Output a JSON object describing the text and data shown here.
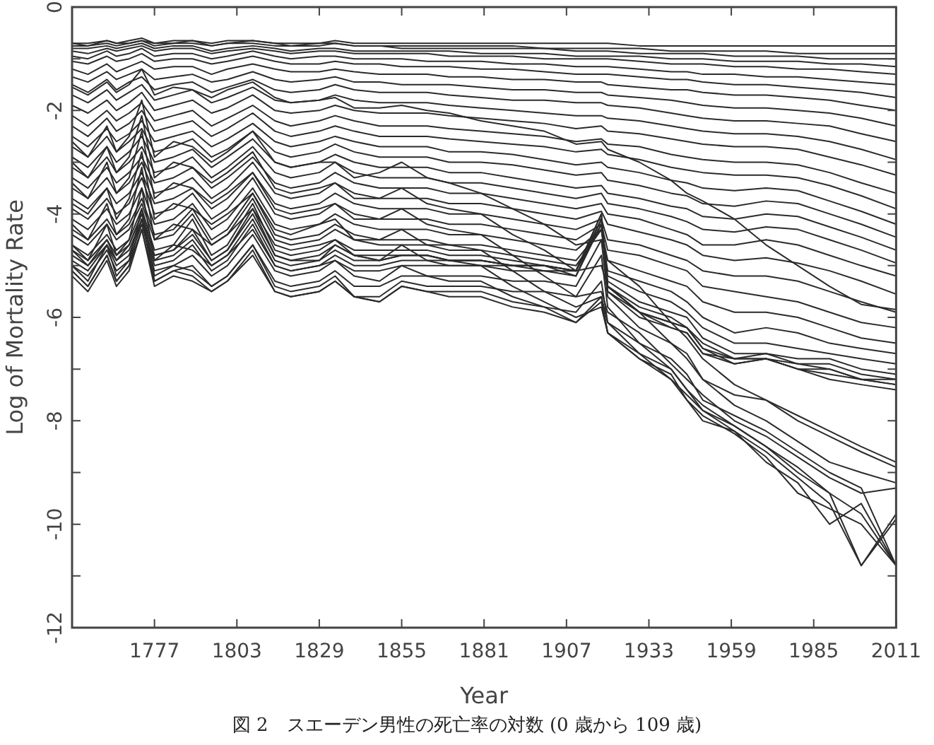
{
  "chart_data": {
    "type": "line",
    "xlabel": "Year",
    "ylabel": "Log of Mortality Rate",
    "annotations": [
      "図 2　スエーデン男性の死亡率の対数 (0 歳から 109 歳)"
    ],
    "xlim": [
      1751,
      2011
    ],
    "xticks": [
      1777,
      1803,
      1829,
      1855,
      1881,
      1907,
      1933,
      1959,
      1985,
      2011
    ],
    "ylim": [
      -12,
      0
    ],
    "yticks": [
      -12,
      {
        "value": -11,
        "label": null
      },
      -10,
      {
        "value": -9,
        "label": null
      },
      -8,
      {
        "value": -7,
        "label": null
      },
      -6,
      {
        "value": -5,
        "label": null
      },
      -4,
      {
        "value": -3,
        "label": null
      },
      -2,
      {
        "value": -1,
        "label": null
      },
      0
    ],
    "grid": false,
    "legend": false,
    "line_style": "solid",
    "x": [
      1751,
      1756,
      1762,
      1765,
      1769,
      1773,
      1777,
      1783,
      1789,
      1795,
      1800,
      1808,
      1815,
      1820,
      1829,
      1834,
      1840,
      1848,
      1855,
      1863,
      1870,
      1880,
      1890,
      1900,
      1910,
      1918,
      1920,
      1930,
      1940,
      1945,
      1950,
      1960,
      1970,
      1980,
      1990,
      2000,
      2011
    ],
    "series": [
      {
        "color": "#2b2b2b",
        "values": [
          -1.55,
          -1.7,
          -1.45,
          -1.65,
          -1.5,
          -1.2,
          -1.7,
          -1.55,
          -1.6,
          -1.75,
          -1.6,
          -1.45,
          -1.75,
          -1.85,
          -1.8,
          -1.75,
          -1.95,
          -1.95,
          -1.9,
          -2.0,
          -2.05,
          -2.2,
          -2.3,
          -2.4,
          -2.65,
          -2.6,
          -2.75,
          -3.0,
          -3.35,
          -3.6,
          -3.75,
          -4.1,
          -4.6,
          -5.0,
          -5.4,
          -5.75,
          -5.85
        ]
      },
      {
        "color": "#2b2b2b",
        "values": [
          -2.6,
          -2.9,
          -2.3,
          -2.8,
          -2.5,
          -1.8,
          -2.9,
          -2.6,
          -2.7,
          -3.0,
          -2.8,
          -2.4,
          -3.0,
          -3.1,
          -3.0,
          -3.0,
          -3.3,
          -3.2,
          -3.0,
          -3.3,
          -3.4,
          -3.6,
          -3.9,
          -4.2,
          -4.6,
          -4.5,
          -4.9,
          -5.4,
          -6.1,
          -6.4,
          -6.8,
          -7.3,
          -7.6,
          -8.0,
          -8.3,
          -8.6,
          -8.9
        ]
      },
      {
        "color": "#2b2b2b",
        "values": [
          -3.0,
          -3.3,
          -2.7,
          -3.2,
          -2.9,
          -2.1,
          -3.3,
          -3.0,
          -3.1,
          -3.4,
          -3.2,
          -2.8,
          -3.5,
          -3.6,
          -3.5,
          -3.4,
          -3.7,
          -3.7,
          -3.5,
          -3.8,
          -3.9,
          -4.0,
          -4.4,
          -4.7,
          -5.1,
          -5.0,
          -5.4,
          -5.9,
          -6.5,
          -6.8,
          -7.2,
          -7.7,
          -8.0,
          -8.4,
          -8.8,
          -9.0,
          -9.2
        ]
      },
      {
        "color": "#2b2b2b",
        "values": [
          -3.4,
          -3.7,
          -3.0,
          -3.6,
          -3.3,
          -2.4,
          -3.7,
          -3.4,
          -3.5,
          -3.8,
          -3.6,
          -3.2,
          -3.9,
          -4.0,
          -3.9,
          -3.8,
          -4.1,
          -4.1,
          -3.9,
          -4.2,
          -4.3,
          -4.4,
          -4.8,
          -5.2,
          -5.6,
          -5.5,
          -5.9,
          -6.3,
          -6.9,
          -7.2,
          -7.5,
          -8.0,
          -8.3,
          -8.7,
          -9.1,
          -9.4,
          -9.3
        ]
      },
      {
        "color": "#2b2b2b",
        "values": [
          -3.8,
          -4.0,
          -3.5,
          -4.1,
          -3.7,
          -2.8,
          -4.1,
          -3.8,
          -3.9,
          -4.2,
          -4.0,
          -3.6,
          -4.3,
          -4.4,
          -4.2,
          -4.1,
          -4.5,
          -4.5,
          -4.3,
          -4.6,
          -4.6,
          -4.7,
          -5.1,
          -5.5,
          -5.8,
          -5.6,
          -6.1,
          -6.5,
          -7.0,
          -7.4,
          -7.7,
          -8.1,
          -8.5,
          -8.9,
          -9.4,
          -9.8,
          -10.8
        ]
      },
      {
        "color": "#2b2b2b",
        "values": [
          -4.2,
          -4.5,
          -3.8,
          -4.4,
          -4.1,
          -3.1,
          -4.5,
          -4.2,
          -4.3,
          -4.6,
          -4.4,
          -3.9,
          -4.6,
          -4.7,
          -4.6,
          -4.5,
          -4.8,
          -4.9,
          -4.6,
          -4.9,
          -5.0,
          -5.0,
          -5.4,
          -5.7,
          -6.0,
          -5.8,
          -6.3,
          -6.7,
          -7.2,
          -7.5,
          -7.8,
          -8.2,
          -8.6,
          -9.1,
          -9.6,
          -10.8,
          -9.9
        ]
      },
      {
        "color": "#2b2b2b",
        "values": [
          -4.6,
          -4.9,
          -4.2,
          -4.8,
          -4.5,
          -3.5,
          -4.9,
          -4.6,
          -4.7,
          -5.0,
          -4.8,
          -4.3,
          -5.0,
          -5.1,
          -5.0,
          -4.9,
          -5.2,
          -5.3,
          -5.0,
          -5.2,
          -5.3,
          -5.3,
          -5.6,
          -5.8,
          -6.1,
          -5.7,
          -6.3,
          -6.8,
          -7.2,
          -7.6,
          -8.0,
          -8.2,
          -8.8,
          -9.2,
          -10.0,
          -9.6,
          -10.8
        ]
      },
      {
        "color": "#2b2b2b",
        "values": [
          -5.0,
          -5.3,
          -4.6,
          -5.2,
          -4.9,
          -3.9,
          -5.2,
          -5.0,
          -5.1,
          -5.4,
          -5.2,
          -4.6,
          -5.4,
          -5.5,
          -5.4,
          -5.2,
          -5.6,
          -5.7,
          -5.4,
          -5.5,
          -5.6,
          -5.6,
          -5.8,
          -5.9,
          -6.1,
          -5.6,
          -6.3,
          -6.8,
          -7.1,
          -7.6,
          -7.9,
          -8.25,
          -8.7,
          -9.4,
          -9.7,
          -10.0,
          -10.8
        ]
      },
      {
        "color": "#2b2b2b",
        "values": [
          -5.1,
          -5.4,
          -4.8,
          -5.3,
          -5.0,
          -4.1,
          -5.3,
          -5.1,
          -5.2,
          -5.5,
          -5.3,
          -4.7,
          -5.5,
          -5.6,
          -5.5,
          -5.3,
          -5.6,
          -5.7,
          -5.4,
          -5.5,
          -5.5,
          -5.5,
          -5.7,
          -5.8,
          -5.9,
          -5.3,
          -6.1,
          -6.7,
          -7.0,
          -7.4,
          -7.8,
          -8.1,
          -8.5,
          -9.0,
          -9.4,
          -10.8,
          -9.8
        ]
      },
      {
        "color": "#2b2b2b",
        "values": [
          -5.2,
          -5.5,
          -4.9,
          -5.4,
          -5.1,
          -4.3,
          -5.4,
          -5.2,
          -5.3,
          -5.5,
          -5.3,
          -4.8,
          -5.5,
          -5.6,
          -5.5,
          -5.3,
          -5.6,
          -5.6,
          -5.3,
          -5.4,
          -5.4,
          -5.4,
          -5.5,
          -5.5,
          -5.6,
          -4.8,
          -5.8,
          -6.5,
          -6.8,
          -7.1,
          -7.6,
          -7.9,
          -8.2,
          -8.6,
          -9.0,
          -9.3,
          -10.8
        ]
      },
      {
        "color": "#2b2b2b",
        "values": [
          -5.1,
          -5.4,
          -4.8,
          -5.3,
          -5.0,
          -4.3,
          -5.3,
          -5.1,
          -5.0,
          -5.4,
          -5.2,
          -4.6,
          -5.3,
          -5.4,
          -5.3,
          -5.1,
          -5.4,
          -5.4,
          -5.2,
          -5.2,
          -5.2,
          -5.2,
          -5.3,
          -5.3,
          -5.4,
          -4.5,
          -5.6,
          -6.2,
          -6.5,
          -6.7,
          -7.2,
          -7.5,
          -7.6,
          -7.9,
          -8.2,
          -8.5,
          -8.8
        ]
      },
      {
        "color": "#2b2b2b",
        "values": [
          -5.0,
          -5.2,
          -4.7,
          -5.1,
          -4.9,
          -4.2,
          -5.1,
          -5.0,
          -4.8,
          -5.2,
          -5.0,
          -4.4,
          -5.1,
          -5.2,
          -5.1,
          -4.9,
          -5.1,
          -5.1,
          -5.0,
          -5.0,
          -5.0,
          -5.0,
          -5.1,
          -5.1,
          -5.2,
          -4.2,
          -5.5,
          -6.0,
          -6.2,
          -6.3,
          -6.7,
          -6.9,
          -6.8,
          -7.0,
          -7.2,
          -7.3,
          -7.4
        ]
      },
      {
        "color": "#2b2b2b",
        "values": [
          -4.9,
          -5.1,
          -4.6,
          -5.0,
          -4.8,
          -4.1,
          -5.0,
          -4.9,
          -4.6,
          -5.1,
          -4.9,
          -4.2,
          -5.0,
          -5.1,
          -5.0,
          -4.8,
          -5.0,
          -5.0,
          -4.9,
          -4.9,
          -4.9,
          -5.0,
          -5.0,
          -5.1,
          -5.1,
          -4.1,
          -5.5,
          -5.9,
          -6.2,
          -6.3,
          -6.7,
          -6.8,
          -6.8,
          -7.0,
          -7.1,
          -7.2,
          -7.3
        ]
      },
      {
        "color": "#2b2b2b",
        "values": [
          -4.8,
          -5.0,
          -4.6,
          -4.9,
          -4.7,
          -4.1,
          -4.9,
          -4.8,
          -4.5,
          -5.0,
          -4.8,
          -4.1,
          -4.9,
          -5.0,
          -4.9,
          -4.7,
          -4.9,
          -4.9,
          -4.8,
          -4.8,
          -4.9,
          -4.9,
          -5.0,
          -5.0,
          -5.1,
          -4.0,
          -5.4,
          -5.9,
          -6.1,
          -6.2,
          -6.6,
          -6.8,
          -6.7,
          -6.9,
          -7.0,
          -7.2,
          -7.2
        ]
      },
      {
        "color": "#2b2b2b",
        "values": [
          -4.7,
          -5.0,
          -4.5,
          -4.9,
          -4.6,
          -4.0,
          -4.8,
          -4.7,
          -4.4,
          -4.9,
          -4.7,
          -4.0,
          -4.8,
          -4.9,
          -4.9,
          -4.6,
          -4.8,
          -4.9,
          -4.8,
          -4.8,
          -4.9,
          -4.9,
          -5.0,
          -5.0,
          -5.1,
          -4.0,
          -5.4,
          -5.9,
          -6.1,
          -6.2,
          -6.6,
          -6.9,
          -6.8,
          -7.0,
          -7.0,
          -7.2,
          -7.3
        ]
      },
      {
        "color": "#2b2b2b",
        "values": [
          -4.7,
          -4.9,
          -4.5,
          -4.8,
          -4.6,
          -4.0,
          -4.8,
          -4.7,
          -4.3,
          -4.9,
          -4.7,
          -3.9,
          -4.8,
          -4.9,
          -4.8,
          -4.6,
          -4.8,
          -4.8,
          -4.8,
          -4.8,
          -4.9,
          -4.9,
          -5.0,
          -5.0,
          -5.2,
          -4.1,
          -5.4,
          -5.8,
          -6.0,
          -6.2,
          -6.5,
          -6.8,
          -6.8,
          -6.9,
          -6.9,
          -7.1,
          -7.2
        ]
      },
      {
        "color": "#2b2b2b",
        "values": [
          -4.6,
          -4.8,
          -4.4,
          -4.7,
          -4.5,
          -3.9,
          -4.7,
          -4.6,
          -4.1,
          -4.8,
          -4.6,
          -3.8,
          -4.7,
          -4.8,
          -4.7,
          -4.5,
          -4.7,
          -4.7,
          -4.7,
          -4.7,
          -4.8,
          -4.8,
          -4.9,
          -5.0,
          -5.1,
          -4.2,
          -5.3,
          -5.7,
          -5.9,
          -6.0,
          -6.4,
          -6.7,
          -6.7,
          -6.8,
          -6.8,
          -7.0,
          -7.1
        ]
      },
      {
        "color": "#2b2b2b",
        "values": [
          -4.4,
          -4.6,
          -4.2,
          -4.5,
          -4.3,
          -3.8,
          -4.5,
          -4.4,
          -4.0,
          -4.6,
          -4.4,
          -3.7,
          -4.5,
          -4.6,
          -4.5,
          -4.3,
          -4.5,
          -4.6,
          -4.6,
          -4.6,
          -4.7,
          -4.7,
          -4.8,
          -4.9,
          -5.0,
          -4.3,
          -5.2,
          -5.5,
          -5.7,
          -5.9,
          -6.2,
          -6.5,
          -6.5,
          -6.6,
          -6.7,
          -6.8,
          -6.9
        ]
      },
      {
        "color": "#2b2b2b",
        "values": [
          -4.3,
          -4.5,
          -4.1,
          -4.4,
          -4.2,
          -3.7,
          -4.4,
          -4.3,
          -3.9,
          -4.5,
          -4.3,
          -3.6,
          -4.4,
          -4.5,
          -4.4,
          -4.2,
          -4.4,
          -4.5,
          -4.5,
          -4.5,
          -4.6,
          -4.6,
          -4.7,
          -4.8,
          -4.9,
          -4.3,
          -5.1,
          -5.3,
          -5.5,
          -5.7,
          -6.0,
          -6.3,
          -6.2,
          -6.3,
          -6.5,
          -6.6,
          -6.7
        ]
      },
      {
        "color": "#2b2b2b",
        "values": [
          -4.1,
          -4.3,
          -3.9,
          -4.2,
          -4.0,
          -3.5,
          -4.2,
          -4.1,
          -3.8,
          -4.3,
          -4.1,
          -3.5,
          -4.2,
          -4.3,
          -4.2,
          -4.0,
          -4.2,
          -4.3,
          -4.3,
          -4.3,
          -4.4,
          -4.4,
          -4.5,
          -4.6,
          -4.7,
          -4.3,
          -4.9,
          -5.1,
          -5.3,
          -5.4,
          -5.7,
          -5.9,
          -5.9,
          -6.0,
          -6.2,
          -6.4,
          -6.5
        ]
      },
      {
        "color": "#2b2b2b",
        "values": [
          -3.9,
          -4.1,
          -3.7,
          -4.0,
          -3.8,
          -3.3,
          -4.0,
          -3.9,
          -3.6,
          -4.1,
          -3.9,
          -3.3,
          -4.0,
          -4.1,
          -4.0,
          -3.8,
          -4.0,
          -4.1,
          -4.1,
          -4.1,
          -4.2,
          -4.2,
          -4.3,
          -4.4,
          -4.5,
          -4.2,
          -4.7,
          -4.8,
          -5.0,
          -5.1,
          -5.4,
          -5.5,
          -5.6,
          -5.7,
          -5.9,
          -6.1,
          -6.2
        ]
      },
      {
        "color": "#2b2b2b",
        "values": [
          -3.7,
          -3.9,
          -3.5,
          -3.8,
          -3.6,
          -3.2,
          -3.8,
          -3.7,
          -3.5,
          -3.9,
          -3.7,
          -3.2,
          -3.8,
          -3.9,
          -3.8,
          -3.6,
          -3.8,
          -3.9,
          -3.9,
          -3.9,
          -4.0,
          -4.0,
          -4.1,
          -4.2,
          -4.3,
          -4.1,
          -4.5,
          -4.6,
          -4.8,
          -4.9,
          -5.1,
          -5.2,
          -5.2,
          -5.3,
          -5.5,
          -5.7,
          -5.9
        ]
      },
      {
        "color": "#2b2b2b",
        "values": [
          -3.5,
          -3.7,
          -3.3,
          -3.6,
          -3.4,
          -3.0,
          -3.6,
          -3.5,
          -3.3,
          -3.7,
          -3.5,
          -3.0,
          -3.6,
          -3.7,
          -3.6,
          -3.4,
          -3.6,
          -3.7,
          -3.7,
          -3.7,
          -3.8,
          -3.8,
          -3.9,
          -4.0,
          -4.1,
          -3.95,
          -4.2,
          -4.35,
          -4.5,
          -4.6,
          -4.8,
          -4.9,
          -4.85,
          -4.95,
          -5.1,
          -5.3,
          -5.55
        ]
      },
      {
        "color": "#2b2b2b",
        "values": [
          -3.3,
          -3.5,
          -3.1,
          -3.4,
          -3.2,
          -2.9,
          -3.4,
          -3.3,
          -3.1,
          -3.5,
          -3.3,
          -2.9,
          -3.4,
          -3.5,
          -3.4,
          -3.2,
          -3.4,
          -3.5,
          -3.5,
          -3.5,
          -3.6,
          -3.6,
          -3.7,
          -3.8,
          -3.9,
          -3.8,
          -4.0,
          -4.1,
          -4.3,
          -4.4,
          -4.6,
          -4.6,
          -4.5,
          -4.6,
          -4.8,
          -5.0,
          -5.2
        ]
      },
      {
        "color": "#2b2b2b",
        "values": [
          -3.1,
          -3.3,
          -2.9,
          -3.2,
          -3.0,
          -2.7,
          -3.2,
          -3.1,
          -2.9,
          -3.3,
          -3.1,
          -2.7,
          -3.2,
          -3.3,
          -3.2,
          -3.0,
          -3.2,
          -3.3,
          -3.3,
          -3.3,
          -3.4,
          -3.4,
          -3.5,
          -3.6,
          -3.7,
          -3.6,
          -3.8,
          -3.9,
          -4.05,
          -4.15,
          -4.3,
          -4.35,
          -4.25,
          -4.3,
          -4.5,
          -4.7,
          -4.95
        ]
      },
      {
        "color": "#2b2b2b",
        "values": [
          -2.9,
          -3.1,
          -2.7,
          -3.0,
          -2.8,
          -2.5,
          -3.0,
          -2.9,
          -2.75,
          -3.1,
          -2.9,
          -2.55,
          -3.0,
          -3.1,
          -3.0,
          -2.85,
          -3.0,
          -3.1,
          -3.1,
          -3.1,
          -3.2,
          -3.2,
          -3.3,
          -3.4,
          -3.5,
          -3.45,
          -3.6,
          -3.7,
          -3.85,
          -3.9,
          -4.05,
          -4.1,
          -4.0,
          -4.05,
          -4.25,
          -4.45,
          -4.7
        ]
      },
      {
        "color": "#2b2b2b",
        "values": [
          -2.7,
          -2.9,
          -2.5,
          -2.8,
          -2.6,
          -2.35,
          -2.8,
          -2.7,
          -2.55,
          -2.9,
          -2.75,
          -2.4,
          -2.8,
          -2.9,
          -2.8,
          -2.65,
          -2.8,
          -2.9,
          -2.9,
          -2.9,
          -3.0,
          -3.0,
          -3.05,
          -3.15,
          -3.25,
          -3.2,
          -3.35,
          -3.45,
          -3.6,
          -3.65,
          -3.8,
          -3.85,
          -3.75,
          -3.8,
          -4.0,
          -4.2,
          -4.45
        ]
      },
      {
        "color": "#2b2b2b",
        "values": [
          -2.5,
          -2.7,
          -2.35,
          -2.6,
          -2.45,
          -2.2,
          -2.6,
          -2.5,
          -2.4,
          -2.7,
          -2.55,
          -2.25,
          -2.6,
          -2.7,
          -2.6,
          -2.5,
          -2.6,
          -2.7,
          -2.7,
          -2.7,
          -2.8,
          -2.8,
          -2.85,
          -2.95,
          -3.05,
          -3.0,
          -3.1,
          -3.2,
          -3.35,
          -3.4,
          -3.5,
          -3.55,
          -3.5,
          -3.55,
          -3.75,
          -3.95,
          -4.2
        ]
      },
      {
        "color": "#2b2b2b",
        "values": [
          -2.3,
          -2.5,
          -2.15,
          -2.4,
          -2.25,
          -2.0,
          -2.4,
          -2.3,
          -2.2,
          -2.5,
          -2.35,
          -2.05,
          -2.4,
          -2.5,
          -2.4,
          -2.3,
          -2.4,
          -2.5,
          -2.5,
          -2.5,
          -2.55,
          -2.6,
          -2.65,
          -2.7,
          -2.8,
          -2.75,
          -2.85,
          -2.95,
          -3.1,
          -3.15,
          -3.2,
          -3.25,
          -3.25,
          -3.3,
          -3.45,
          -3.65,
          -3.9
        ]
      },
      {
        "color": "#2b2b2b",
        "values": [
          -2.1,
          -2.3,
          -2.0,
          -2.2,
          -2.05,
          -1.85,
          -2.2,
          -2.1,
          -2.0,
          -2.3,
          -2.15,
          -1.9,
          -2.2,
          -2.3,
          -2.2,
          -2.1,
          -2.2,
          -2.3,
          -2.3,
          -2.3,
          -2.35,
          -2.4,
          -2.45,
          -2.5,
          -2.6,
          -2.55,
          -2.65,
          -2.7,
          -2.85,
          -2.9,
          -2.95,
          -3.0,
          -3.0,
          -3.05,
          -3.2,
          -3.4,
          -3.6
        ]
      },
      {
        "color": "#2b2b2b",
        "values": [
          -1.9,
          -2.05,
          -1.8,
          -2.0,
          -1.85,
          -1.65,
          -2.0,
          -1.9,
          -1.8,
          -2.05,
          -1.95,
          -1.7,
          -2.0,
          -2.05,
          -2.0,
          -1.9,
          -2.0,
          -2.05,
          -2.05,
          -2.05,
          -2.1,
          -2.15,
          -2.2,
          -2.25,
          -2.35,
          -2.3,
          -2.4,
          -2.45,
          -2.55,
          -2.6,
          -2.65,
          -2.7,
          -2.7,
          -2.75,
          -2.9,
          -3.05,
          -3.25
        ]
      },
      {
        "color": "#2b2b2b",
        "values": [
          -1.7,
          -1.85,
          -1.6,
          -1.8,
          -1.65,
          -1.5,
          -1.8,
          -1.7,
          -1.6,
          -1.85,
          -1.75,
          -1.55,
          -1.8,
          -1.85,
          -1.8,
          -1.7,
          -1.8,
          -1.85,
          -1.85,
          -1.85,
          -1.9,
          -1.95,
          -2.0,
          -2.05,
          -2.1,
          -2.1,
          -2.15,
          -2.2,
          -2.3,
          -2.35,
          -2.4,
          -2.45,
          -2.45,
          -2.5,
          -2.6,
          -2.75,
          -2.95
        ]
      },
      {
        "color": "#2b2b2b",
        "values": [
          -1.5,
          -1.65,
          -1.4,
          -1.6,
          -1.45,
          -1.35,
          -1.6,
          -1.5,
          -1.45,
          -1.65,
          -1.55,
          -1.4,
          -1.6,
          -1.65,
          -1.6,
          -1.5,
          -1.6,
          -1.65,
          -1.65,
          -1.65,
          -1.7,
          -1.75,
          -1.8,
          -1.8,
          -1.85,
          -1.85,
          -1.9,
          -1.95,
          -2.05,
          -2.1,
          -2.15,
          -2.2,
          -2.2,
          -2.25,
          -2.3,
          -2.45,
          -2.6
        ]
      },
      {
        "color": "#2b2b2b",
        "values": [
          -1.35,
          -1.45,
          -1.25,
          -1.4,
          -1.3,
          -1.2,
          -1.4,
          -1.35,
          -1.3,
          -1.45,
          -1.4,
          -1.25,
          -1.4,
          -1.45,
          -1.4,
          -1.35,
          -1.45,
          -1.45,
          -1.5,
          -1.5,
          -1.5,
          -1.55,
          -1.6,
          -1.6,
          -1.65,
          -1.65,
          -1.7,
          -1.75,
          -1.8,
          -1.85,
          -1.9,
          -1.95,
          -1.95,
          -2.0,
          -2.05,
          -2.15,
          -2.3
        ]
      },
      {
        "color": "#2b2b2b",
        "values": [
          -1.2,
          -1.3,
          -1.1,
          -1.25,
          -1.15,
          -1.05,
          -1.2,
          -1.15,
          -1.15,
          -1.3,
          -1.2,
          -1.1,
          -1.2,
          -1.25,
          -1.25,
          -1.2,
          -1.25,
          -1.3,
          -1.3,
          -1.3,
          -1.35,
          -1.35,
          -1.4,
          -1.4,
          -1.45,
          -1.45,
          -1.5,
          -1.55,
          -1.6,
          -1.6,
          -1.65,
          -1.7,
          -1.7,
          -1.75,
          -1.8,
          -1.9,
          -2.0
        ]
      },
      {
        "color": "#2b2b2b",
        "values": [
          -1.05,
          -1.1,
          -0.95,
          -1.05,
          -1.0,
          -0.9,
          -1.05,
          -1.0,
          -1.0,
          -1.1,
          -1.05,
          -0.95,
          -1.05,
          -1.1,
          -1.1,
          -1.05,
          -1.1,
          -1.1,
          -1.15,
          -1.15,
          -1.15,
          -1.2,
          -1.2,
          -1.25,
          -1.3,
          -1.3,
          -1.3,
          -1.35,
          -1.4,
          -1.4,
          -1.45,
          -1.5,
          -1.5,
          -1.55,
          -1.6,
          -1.65,
          -1.75
        ]
      },
      {
        "color": "#2b2b2b",
        "values": [
          -0.95,
          -1.0,
          -0.85,
          -0.95,
          -0.9,
          -0.8,
          -0.95,
          -0.9,
          -0.9,
          -1.0,
          -0.95,
          -0.85,
          -0.95,
          -1.0,
          -0.95,
          -0.95,
          -1.0,
          -1.0,
          -1.0,
          -1.05,
          -1.05,
          -1.05,
          -1.1,
          -1.1,
          -1.15,
          -1.15,
          -1.15,
          -1.2,
          -1.25,
          -1.25,
          -1.3,
          -1.3,
          -1.35,
          -1.35,
          -1.4,
          -1.45,
          -1.5
        ]
      },
      {
        "color": "#2b2b2b",
        "values": [
          -0.85,
          -0.9,
          -0.8,
          -0.85,
          -0.8,
          -0.75,
          -0.85,
          -0.8,
          -0.8,
          -0.9,
          -0.85,
          -0.8,
          -0.85,
          -0.9,
          -0.85,
          -0.85,
          -0.9,
          -0.9,
          -0.9,
          -0.9,
          -0.95,
          -0.95,
          -0.95,
          -1.0,
          -1.0,
          -1.0,
          -1.0,
          -1.05,
          -1.1,
          -1.1,
          -1.1,
          -1.15,
          -1.15,
          -1.2,
          -1.2,
          -1.25,
          -1.3
        ]
      },
      {
        "color": "#2b2b2b",
        "values": [
          -0.8,
          -0.8,
          -0.75,
          -0.8,
          -0.75,
          -0.7,
          -0.8,
          -0.75,
          -0.75,
          -0.85,
          -0.8,
          -0.75,
          -0.8,
          -0.85,
          -0.8,
          -0.8,
          -0.85,
          -0.85,
          -0.85,
          -0.85,
          -0.85,
          -0.9,
          -0.9,
          -0.9,
          -0.95,
          -0.95,
          -0.95,
          -0.95,
          -1.0,
          -1.0,
          -1.0,
          -1.05,
          -1.05,
          -1.05,
          -1.1,
          -1.1,
          -1.15
        ]
      },
      {
        "color": "#2b2b2b",
        "values": [
          -0.75,
          -0.75,
          -0.7,
          -0.75,
          -0.7,
          -0.65,
          -0.75,
          -0.7,
          -0.7,
          -0.75,
          -0.7,
          -0.7,
          -0.75,
          -0.75,
          -0.75,
          -0.7,
          -0.75,
          -0.75,
          -0.8,
          -0.8,
          -0.8,
          -0.8,
          -0.8,
          -0.8,
          -0.85,
          -0.85,
          -0.85,
          -0.9,
          -0.9,
          -0.9,
          -0.9,
          -0.95,
          -0.95,
          -0.95,
          -1.0,
          -1.0,
          -1.0
        ]
      },
      {
        "color": "#2b2b2b",
        "values": [
          -0.7,
          -0.75,
          -0.65,
          -0.7,
          -0.7,
          -0.65,
          -0.7,
          -0.7,
          -0.65,
          -0.75,
          -0.7,
          -0.65,
          -0.7,
          -0.75,
          -0.7,
          -0.7,
          -0.75,
          -0.75,
          -0.75,
          -0.75,
          -0.75,
          -0.75,
          -0.75,
          -0.8,
          -0.8,
          -0.8,
          -0.8,
          -0.8,
          -0.85,
          -0.85,
          -0.85,
          -0.85,
          -0.85,
          -0.9,
          -0.9,
          -0.9,
          -0.9
        ]
      },
      {
        "color": "#2b2b2b",
        "values": [
          -0.7,
          -0.7,
          -0.65,
          -0.7,
          -0.65,
          -0.6,
          -0.7,
          -0.65,
          -0.65,
          -0.7,
          -0.65,
          -0.65,
          -0.7,
          -0.7,
          -0.7,
          -0.65,
          -0.7,
          -0.7,
          -0.7,
          -0.7,
          -0.7,
          -0.7,
          -0.7,
          -0.7,
          -0.7,
          -0.7,
          -0.7,
          -0.75,
          -0.75,
          -0.75,
          -0.75,
          -0.75,
          -0.75,
          -0.75,
          -0.75,
          -0.75,
          -0.75
        ]
      }
    ]
  }
}
